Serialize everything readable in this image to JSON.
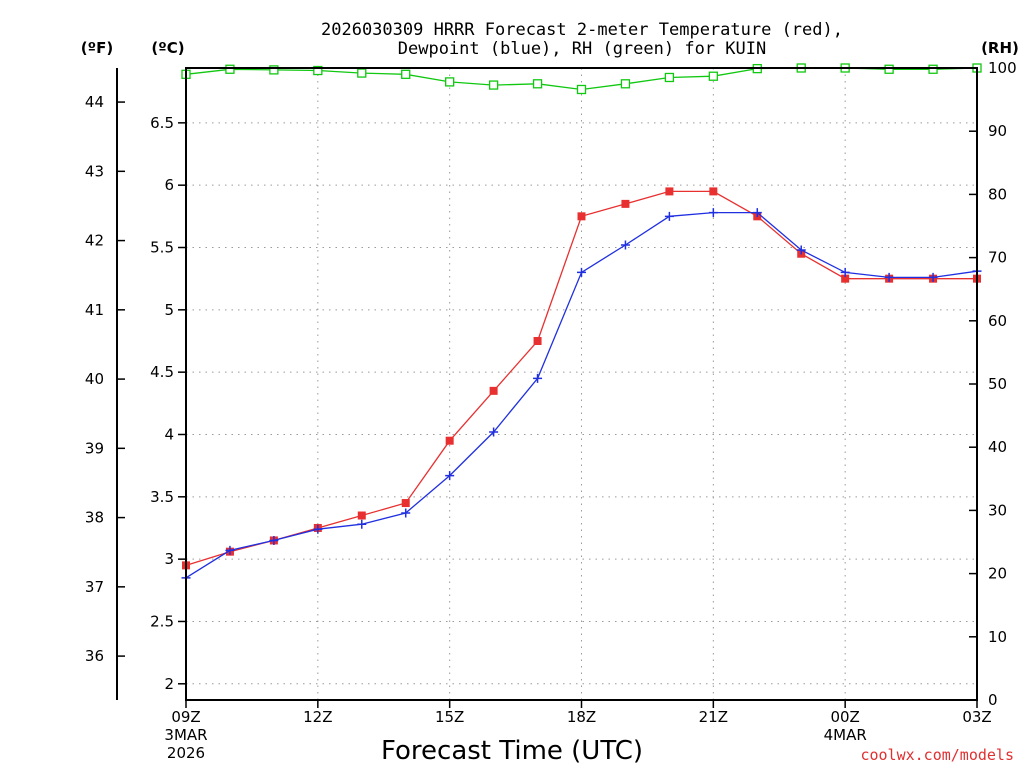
{
  "chart_data": {
    "type": "line",
    "title_line1": "2026030309 HRRR Forecast 2-meter Temperature (red),",
    "title_line2": "Dewpoint (blue), RH (green) for KUIN",
    "unit_f": "(ºF)",
    "unit_c": "(ºC)",
    "unit_rh": "(RH)",
    "xlabel": "Forecast Time (UTC)",
    "credit": "coolwx.com/models",
    "x_hours": [
      0,
      1,
      2,
      3,
      4,
      5,
      6,
      7,
      8,
      9,
      10,
      11,
      12,
      13,
      14,
      15,
      16,
      17,
      18
    ],
    "x_ticks": [
      {
        "hour": 0,
        "label": "09Z",
        "sub1": "3MAR",
        "sub2": "2026"
      },
      {
        "hour": 3,
        "label": "12Z",
        "sub1": "",
        "sub2": ""
      },
      {
        "hour": 6,
        "label": "15Z",
        "sub1": "",
        "sub2": ""
      },
      {
        "hour": 9,
        "label": "18Z",
        "sub1": "",
        "sub2": ""
      },
      {
        "hour": 12,
        "label": "21Z",
        "sub1": "",
        "sub2": ""
      },
      {
        "hour": 15,
        "label": "00Z",
        "sub1": "4MAR",
        "sub2": ""
      },
      {
        "hour": 18,
        "label": "03Z",
        "sub1": "",
        "sub2": ""
      }
    ],
    "c_range": [
      1.87,
      6.94
    ],
    "c_ticks": [
      "2",
      "2.5",
      "3",
      "3.5",
      "4",
      "4.5",
      "5",
      "5.5",
      "6",
      "6.5"
    ],
    "f_ticks": [
      "36",
      "37",
      "38",
      "39",
      "40",
      "41",
      "42",
      "43",
      "44"
    ],
    "rh_range": [
      0,
      100
    ],
    "rh_ticks": [
      "0",
      "10",
      "20",
      "30",
      "40",
      "50",
      "60",
      "70",
      "80",
      "90",
      "100"
    ],
    "series": [
      {
        "name": "Temperature",
        "color": "#e83030",
        "marker": "filled-square",
        "values": [
          2.95,
          3.06,
          3.15,
          3.25,
          3.35,
          3.45,
          3.95,
          4.35,
          4.75,
          5.75,
          5.85,
          5.95,
          5.95,
          5.75,
          5.45,
          5.25,
          5.25,
          5.25,
          5.25
        ]
      },
      {
        "name": "Dewpoint",
        "color": "#2030e0",
        "marker": "plus",
        "values": [
          2.85,
          3.07,
          3.15,
          3.24,
          3.28,
          3.37,
          3.67,
          4.02,
          4.45,
          5.3,
          5.52,
          5.75,
          5.78,
          5.78,
          5.48,
          5.3,
          5.26,
          5.26,
          5.31
        ]
      },
      {
        "name": "RH",
        "color": "#10c810",
        "marker": "open-square",
        "axis": "rh",
        "values": [
          99.0,
          99.8,
          99.7,
          99.6,
          99.2,
          99.0,
          97.8,
          97.3,
          97.5,
          96.6,
          97.5,
          98.5,
          98.7,
          99.9,
          100,
          100,
          99.8,
          99.8,
          100
        ]
      }
    ]
  }
}
